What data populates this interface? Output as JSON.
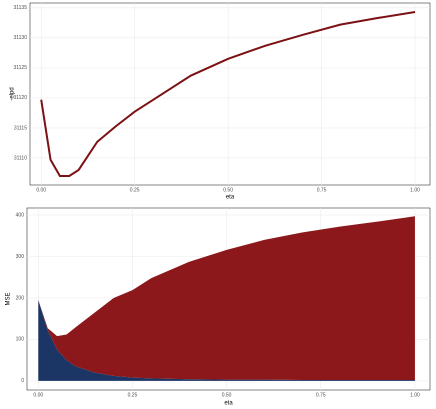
{
  "chart_data": [
    {
      "type": "line",
      "x_label": "eta",
      "y_label": "-elpd",
      "x": [
        0,
        0.025,
        0.05,
        0.075,
        0.1,
        0.15,
        0.2,
        0.25,
        0.3,
        0.4,
        0.5,
        0.6,
        0.7,
        0.8,
        0.9,
        1.0
      ],
      "series": [
        {
          "color": "#7b1113",
          "values": [
            31119.7,
            31109.7,
            31107,
            31107,
            31108,
            31112.7,
            31115.3,
            31117.7,
            31119.7,
            31123.7,
            31126.5,
            31128.7,
            31130.5,
            31132.2,
            31133.3,
            31134.3
          ]
        }
      ],
      "xlim": [
        -0.03,
        1.04
      ],
      "xticks": [
        {
          "value": 0,
          "label": "0.00"
        },
        {
          "value": 0.25,
          "label": "0.25"
        },
        {
          "value": 0.5,
          "label": "0.50"
        },
        {
          "value": 0.75,
          "label": "0.75"
        },
        {
          "value": 1,
          "label": "1.00"
        }
      ],
      "ylim": [
        31105.5,
        31135.8
      ],
      "yticks": [
        31110,
        31115,
        31120,
        31125,
        31130,
        31135
      ],
      "grid": true
    },
    {
      "type": "stacked-area",
      "x_label": "eta",
      "y_label": "MSE",
      "x": [
        0,
        0.025,
        0.05,
        0.075,
        0.1,
        0.15,
        0.2,
        0.25,
        0.3,
        0.4,
        0.5,
        0.6,
        0.7,
        0.8,
        0.9,
        1.0
      ],
      "series": [
        {
          "color": "#1b3564",
          "values": [
            195,
            122,
            75,
            50,
            35,
            20,
            12,
            8,
            6,
            4,
            3,
            3,
            2,
            2,
            2,
            2
          ]
        },
        {
          "color": "#8c181c",
          "values": [
            0,
            5,
            33,
            62,
            95,
            145,
            188,
            211,
            242,
            283,
            313,
            337,
            356,
            370,
            382,
            395
          ]
        }
      ],
      "xlim": [
        -0.03,
        1.04
      ],
      "xticks": [
        {
          "value": 0,
          "label": "0.00"
        },
        {
          "value": 0.25,
          "label": "0.25"
        },
        {
          "value": 0.5,
          "label": "0.50"
        },
        {
          "value": 0.75,
          "label": "0.75"
        },
        {
          "value": 1,
          "label": "1.00"
        }
      ],
      "ylim": [
        -22,
        417
      ],
      "yticks": [
        0,
        100,
        200,
        300,
        400
      ],
      "grid": true
    }
  ]
}
